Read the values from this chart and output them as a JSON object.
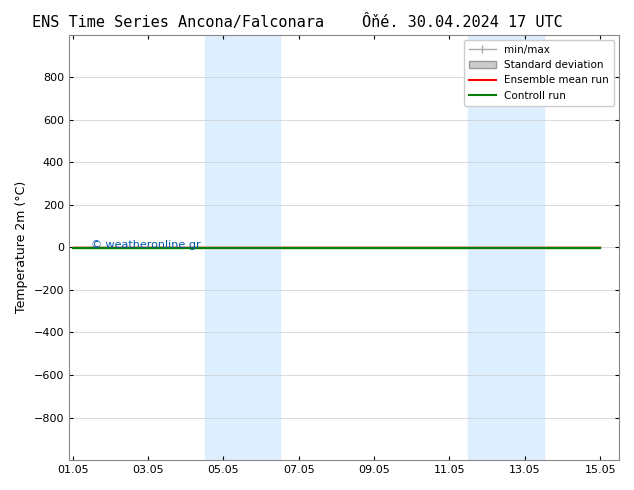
{
  "title_left": "ENS Time Series Ancona/Falconara",
  "title_right": "Ôňé. 30.04.2024 17 UTC",
  "ylabel": "Temperature 2m (°C)",
  "ylim": [
    -1000,
    1000
  ],
  "yticks": [
    -800,
    -600,
    -400,
    -200,
    0,
    200,
    400,
    600,
    800
  ],
  "xlim_start": "2024-05-01",
  "xlim_end": "2024-05-16",
  "xtick_labels": [
    "01.05",
    "03.05",
    "05.05",
    "07.05",
    "09.05",
    "11.05",
    "13.05",
    "15.05"
  ],
  "xtick_positions": [
    0,
    2,
    4,
    6,
    8,
    10,
    12,
    14
  ],
  "background_color": "#ffffff",
  "plot_bg_color": "#ffffff",
  "shaded_regions": [
    {
      "x_start": 3.5,
      "x_end": 5.5,
      "color": "#ddeeff"
    },
    {
      "x_start": 10.5,
      "x_end": 12.5,
      "color": "#ddeeff"
    }
  ],
  "flat_line_y": 0,
  "flat_line_color_red": "#ff0000",
  "flat_line_color_green": "#008000",
  "legend_entries": [
    "min/max",
    "Standard deviation",
    "Ensemble mean run",
    "Controll run"
  ],
  "legend_colors": [
    "#aaaaaa",
    "#cccccc",
    "#ff0000",
    "#008000"
  ],
  "watermark": "© weatheronline.gr",
  "watermark_color": "#0055aa",
  "title_fontsize": 11,
  "axis_fontsize": 9,
  "tick_fontsize": 8
}
